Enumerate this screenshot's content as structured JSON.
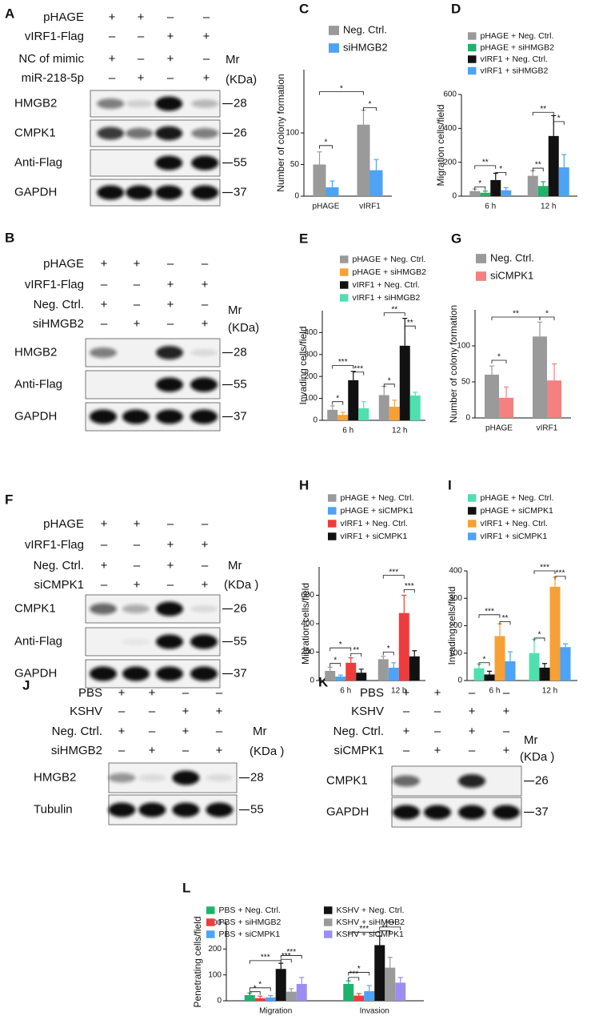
{
  "blots": [
    {
      "panel": "A",
      "rows": [
        {
          "label": "pHAGE",
          "signs": [
            "+",
            "+",
            "–",
            "–"
          ]
        },
        {
          "label": "vIRF1-Flag",
          "signs": [
            "–",
            "–",
            "+",
            "+"
          ]
        },
        {
          "label": "NC of mimic",
          "signs": [
            "+",
            "–",
            "+",
            "–"
          ]
        },
        {
          "label": "miR-218-5p",
          "signs": [
            "–",
            "+",
            "–",
            "+"
          ]
        }
      ],
      "mr": "Mr",
      "kda": "(KDa)",
      "bands": [
        {
          "label": "HMGB2",
          "marker": "28"
        },
        {
          "label": "CMPK1",
          "marker": "26"
        },
        {
          "label": "Anti-Flag",
          "marker": "55"
        },
        {
          "label": "GAPDH",
          "marker": "37"
        }
      ]
    },
    {
      "panel": "B",
      "rows": [
        {
          "label": "pHAGE",
          "signs": [
            "+",
            "+",
            "–",
            "–"
          ]
        },
        {
          "label": "vIRF1-Flag",
          "signs": [
            "–",
            "–",
            "+",
            "+"
          ]
        },
        {
          "label": "Neg. Ctrl.",
          "signs": [
            "+",
            "–",
            "+",
            "–"
          ]
        },
        {
          "label": "siHMGB2",
          "signs": [
            "–",
            "+",
            "–",
            "+"
          ]
        }
      ],
      "mr": "Mr",
      "kda": "(KDa)",
      "bands": [
        {
          "label": "HMGB2",
          "marker": "28"
        },
        {
          "label": "Anti-Flag",
          "marker": "55"
        },
        {
          "label": "GAPDH",
          "marker": "37"
        }
      ]
    },
    {
      "panel": "F",
      "rows": [
        {
          "label": "pHAGE",
          "signs": [
            "+",
            "+",
            "–",
            "–"
          ]
        },
        {
          "label": "vIRF1-Flag",
          "signs": [
            "–",
            "–",
            "+",
            "+"
          ]
        },
        {
          "label": "Neg. Ctrl.",
          "signs": [
            "+",
            "–",
            "+",
            "–"
          ]
        },
        {
          "label": "siCMPK1",
          "signs": [
            "–",
            "+",
            "–",
            "+"
          ]
        }
      ],
      "mr": "Mr",
      "kda": "(KDa )",
      "bands": [
        {
          "label": "CMPK1",
          "marker": "26"
        },
        {
          "label": "Anti-Flag",
          "marker": "55"
        },
        {
          "label": "GAPDH",
          "marker": "37"
        }
      ]
    },
    {
      "panel": "J",
      "rows": [
        {
          "label": "PBS",
          "signs": [
            "+",
            "+",
            "–",
            "–"
          ]
        },
        {
          "label": "KSHV",
          "signs": [
            "–",
            "–",
            "+",
            "+"
          ]
        },
        {
          "label": "Neg. Ctrl.",
          "signs": [
            "+",
            "–",
            "+",
            "–"
          ]
        },
        {
          "label": "siHMGB2",
          "signs": [
            "–",
            "+",
            "–",
            "+"
          ]
        }
      ],
      "mr": "Mr",
      "kda": "(KDa )",
      "bands": [
        {
          "label": "HMGB2",
          "marker": "28"
        },
        {
          "label": "Tubulin",
          "marker": "55"
        }
      ]
    },
    {
      "panel": "K",
      "rows": [
        {
          "label": "PBS",
          "signs": [
            "+",
            "+",
            "–",
            "–"
          ]
        },
        {
          "label": "KSHV",
          "signs": [
            "–",
            "–",
            "+",
            "+"
          ]
        },
        {
          "label": "Neg. Ctrl.",
          "signs": [
            "+",
            "–",
            "+",
            "–"
          ]
        },
        {
          "label": "siCMPK1",
          "signs": [
            "–",
            "+",
            "–",
            "+"
          ]
        }
      ],
      "mr": "Mr",
      "kda": "(KDa )",
      "bands": [
        {
          "label": "CMPK1",
          "marker": "26"
        },
        {
          "label": "GAPDH",
          "marker": "37"
        }
      ]
    }
  ],
  "chart_data": [
    {
      "type": "bar",
      "panel": "C",
      "ylabel": "Number of colony formation",
      "categories": [
        "pHAGE",
        "vIRF1"
      ],
      "series": [
        {
          "name": "Neg. Ctrl.",
          "color": "#9a9a9a",
          "values": [
            50,
            113
          ],
          "errors": [
            20,
            23
          ]
        },
        {
          "name": "siHMGB2",
          "color": "#4da3f5",
          "values": [
            14,
            41
          ],
          "errors": [
            10,
            17
          ]
        }
      ],
      "ylim": [
        0,
        200
      ],
      "yticks": [
        0,
        50,
        100
      ],
      "annotations": [
        "*",
        "*",
        "*"
      ]
    },
    {
      "type": "bar",
      "panel": "D",
      "ylabel": "Migration cells/field",
      "categories": [
        "6 h",
        "12 h"
      ],
      "series": [
        {
          "name": "pHAGE + Neg. Ctrl.",
          "color": "#9a9a9a",
          "values": [
            30,
            120
          ],
          "errors": [
            12,
            30
          ]
        },
        {
          "name": "pHAGE + siHMGB2",
          "color": "#1db36b",
          "values": [
            20,
            60
          ],
          "errors": [
            10,
            25
          ]
        },
        {
          "name": "vIRF1 + Neg. Ctrl.",
          "color": "#111111",
          "values": [
            95,
            355
          ],
          "errors": [
            40,
            120
          ]
        },
        {
          "name": "vIRF1 + siHMGB2",
          "color": "#4da3f5",
          "values": [
            35,
            170
          ],
          "errors": [
            15,
            75
          ]
        }
      ],
      "ylim": [
        0,
        600
      ],
      "yticks": [
        0,
        200,
        400,
        600
      ],
      "annotations": [
        "*",
        "**",
        "*",
        "**",
        "**",
        "*"
      ]
    },
    {
      "type": "bar",
      "panel": "E",
      "ylabel": "Invading cells/field",
      "categories": [
        "6 h",
        "12 h"
      ],
      "series": [
        {
          "name": "pHAGE + Neg. Ctrl.",
          "color": "#9a9a9a",
          "values": [
            48,
            115
          ],
          "errors": [
            18,
            40
          ]
        },
        {
          "name": "pHAGE + siHMGB2",
          "color": "#f7a035",
          "values": [
            25,
            62
          ],
          "errors": [
            12,
            30
          ]
        },
        {
          "name": "vIRF1 + Neg. Ctrl.",
          "color": "#111111",
          "values": [
            183,
            340
          ],
          "errors": [
            40,
            125
          ]
        },
        {
          "name": "vIRF1 + siHMGB2",
          "color": "#4fe0b0",
          "values": [
            55,
            113
          ],
          "errors": [
            30,
            15
          ]
        }
      ],
      "ylim": [
        0,
        500
      ],
      "yticks": [
        0,
        100,
        200,
        300,
        400
      ],
      "annotations": [
        "*",
        "***",
        "***",
        "*",
        "**",
        "**"
      ]
    },
    {
      "type": "bar",
      "panel": "G",
      "ylabel": "Number of colony formation",
      "categories": [
        "pHAGE",
        "vIRF1"
      ],
      "series": [
        {
          "name": "Neg. Ctrl.",
          "color": "#9a9a9a",
          "values": [
            60,
            113
          ],
          "errors": [
            12,
            20
          ]
        },
        {
          "name": "siCMPK1",
          "color": "#f58080",
          "values": [
            28,
            52
          ],
          "errors": [
            15,
            23
          ]
        }
      ],
      "ylim": [
        0,
        150
      ],
      "yticks": [
        0,
        50,
        100
      ],
      "annotations": [
        "*",
        "**",
        "*"
      ]
    },
    {
      "type": "bar",
      "panel": "H",
      "ylabel": "Migration cells/field",
      "categories": [
        "6 h",
        "12 h"
      ],
      "series": [
        {
          "name": "pHAGE + Neg. Ctrl.",
          "color": "#9a9a9a",
          "values": [
            68,
            150
          ],
          "errors": [
            25,
            20
          ]
        },
        {
          "name": "pHAGE + siCMPK1",
          "color": "#4da3f5",
          "values": [
            28,
            90
          ],
          "errors": [
            10,
            35
          ]
        },
        {
          "name": "vIRF1 + Neg. Ctrl.",
          "color": "#ee3b3b",
          "values": [
            125,
            475
          ],
          "errors": [
            35,
            125
          ]
        },
        {
          "name": "vIRF1 + siCMPK1",
          "color": "#111111",
          "values": [
            55,
            170
          ],
          "errors": [
            25,
            40
          ]
        }
      ],
      "ylim": [
        0,
        800
      ],
      "yticks": [
        0,
        200,
        400,
        600
      ],
      "annotations": [
        "*",
        "*",
        "**",
        "*",
        "***",
        "***"
      ]
    },
    {
      "type": "bar",
      "panel": "I",
      "ylabel": "Invading cells/field",
      "categories": [
        "6 h",
        "12 h"
      ],
      "series": [
        {
          "name": "pHAGE + Neg. Ctrl.",
          "color": "#4fe0b0",
          "values": [
            45,
            100
          ],
          "errors": [
            15,
            50
          ]
        },
        {
          "name": "pHAGE + siCMPK1",
          "color": "#111111",
          "values": [
            22,
            47
          ],
          "errors": [
            12,
            15
          ]
        },
        {
          "name": "vIRF1 + Neg. Ctrl.",
          "color": "#f7a035",
          "values": [
            162,
            342
          ],
          "errors": [
            45,
            35
          ]
        },
        {
          "name": "vIRF1 + siCMPK1",
          "color": "#4da3f5",
          "values": [
            70,
            122
          ],
          "errors": [
            35,
            12
          ]
        }
      ],
      "ylim": [
        0,
        400
      ],
      "yticks": [
        0,
        100,
        200,
        300,
        400
      ],
      "annotations": [
        "*",
        "***",
        "**",
        "*",
        "***",
        "***"
      ]
    },
    {
      "type": "bar",
      "panel": "L",
      "ylabel": "Penetrating cells/field",
      "categories": [
        "Migration",
        "Invasion"
      ],
      "series": [
        {
          "name": "PBS + Neg. Ctrl.",
          "color": "#1db36b",
          "values": [
            22,
            65
          ],
          "errors": [
            8,
            12
          ]
        },
        {
          "name": "PBS + siHMGB2",
          "color": "#ee3b3b",
          "values": [
            10,
            20
          ],
          "errors": [
            8,
            8
          ]
        },
        {
          "name": "PBS + siCMPK1",
          "color": "#4da3f5",
          "values": [
            13,
            37
          ],
          "errors": [
            7,
            22
          ]
        },
        {
          "name": "KSHV + Neg. Ctrl.",
          "color": "#111111",
          "values": [
            123,
            215
          ],
          "errors": [
            22,
            35
          ]
        },
        {
          "name": "KSHV + siHMGB2",
          "color": "#9a9a9a",
          "values": [
            35,
            128
          ],
          "errors": [
            12,
            40
          ]
        },
        {
          "name": "KSHV + siCMPK1",
          "color": "#9b8ef0",
          "values": [
            65,
            70
          ],
          "errors": [
            25,
            20
          ]
        }
      ],
      "ylim": [
        0,
        300
      ],
      "yticks": [
        0,
        100,
        200,
        300
      ],
      "annotations": [
        "*",
        "*",
        "***",
        "***",
        "***",
        "***",
        "*",
        "***",
        "**",
        "***"
      ]
    }
  ]
}
